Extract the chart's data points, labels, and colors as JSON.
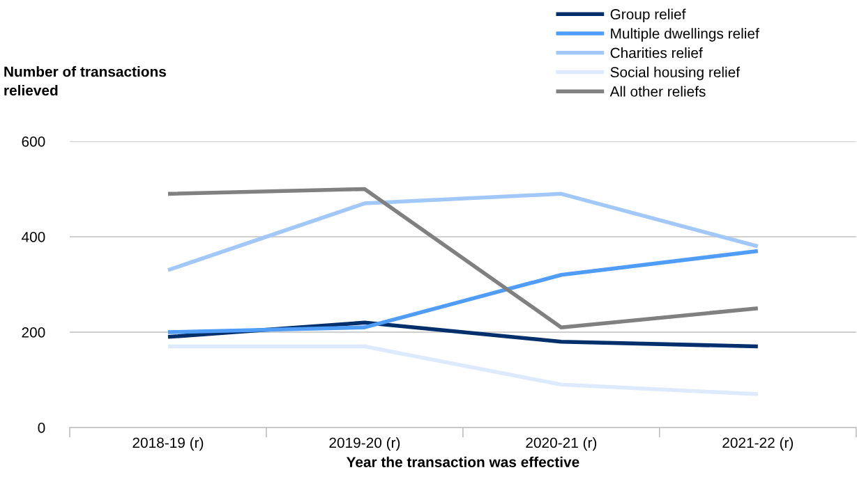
{
  "chart_data": {
    "type": "line",
    "ylabel": "Number of transactions\nrelieved",
    "xlabel": "Year the transaction was effective",
    "categories": [
      "2018-19 (r)",
      "2019-20 (r)",
      "2020-21 (r)",
      "2021-22 (r)"
    ],
    "series": [
      {
        "name": "Group relief",
        "color": "#002f6c",
        "values": [
          190,
          220,
          180,
          170
        ]
      },
      {
        "name": "Multiple dwellings relief",
        "color": "#4f9cf9",
        "values": [
          200,
          210,
          320,
          370
        ]
      },
      {
        "name": "Charities relief",
        "color": "#a2c8fa",
        "values": [
          330,
          470,
          490,
          380
        ]
      },
      {
        "name": "Social housing relief",
        "color": "#ddeafd",
        "values": [
          170,
          170,
          90,
          70
        ]
      },
      {
        "name": "All other reliefs",
        "color": "#808080",
        "values": [
          490,
          500,
          210,
          250
        ]
      }
    ],
    "ylim": [
      0,
      600
    ],
    "yticks": [
      0,
      200,
      400,
      600
    ],
    "grid": "y",
    "legend": "top right",
    "marker": "none",
    "line_style": "solid"
  }
}
